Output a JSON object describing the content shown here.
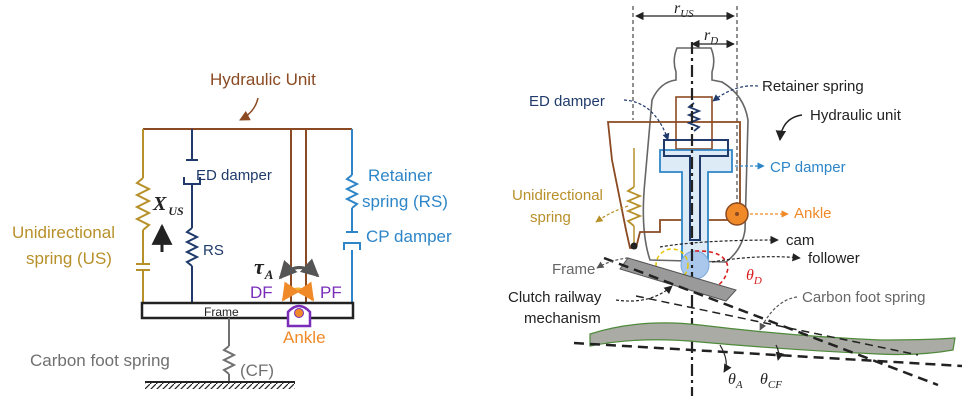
{
  "colors": {
    "brown": "#8B4A22",
    "gold": "#B8902A",
    "navy": "#1F3A6B",
    "blue": "#2E86C8",
    "purple": "#7A2DB8",
    "orange": "#F08A28",
    "gray": "#707070",
    "dark": "#222222",
    "red": "#D92020",
    "yellow": "#E8C400"
  },
  "left": {
    "hydraulic_unit": "Hydraulic Unit",
    "ed_damper": "ED damper",
    "unidirectional_spring_1": "Unidirectional",
    "unidirectional_spring_2": "spring (US)",
    "x_us_main": "X",
    "x_us_sub": "US",
    "rs": "RS",
    "retainer_spring_1": "Retainer",
    "retainer_spring_2": "spring (RS)",
    "cp_damper": "CP damper",
    "tau_main": "τ",
    "tau_sub": "A",
    "df": "DF",
    "pf": "PF",
    "frame": "Frame",
    "ankle": "Ankle",
    "carbon_foot_spring": "Carbon foot spring",
    "cf": "(CF)"
  },
  "right": {
    "r_us_main": "r",
    "r_us_sub": "US",
    "r_d_main": "r",
    "r_d_sub": "D",
    "retainer_spring": "Retainer spring",
    "ed_damper": "ED damper",
    "hydraulic_unit": "Hydraulic unit",
    "cp_damper": "CP damper",
    "unidirectional_1": "Unidirectional",
    "unidirectional_2": "spring",
    "ankle": "Ankle",
    "cam": "cam",
    "follower": "follower",
    "frame": "Frame",
    "theta_d_main": "θ",
    "theta_d_sub": "D",
    "clutch_1": "Clutch railway",
    "clutch_2": "mechanism",
    "carbon_foot_spring": "Carbon foot spring",
    "theta_a_main": "θ",
    "theta_a_sub": "A",
    "theta_cf_main": "θ",
    "theta_cf_sub": "CF"
  }
}
